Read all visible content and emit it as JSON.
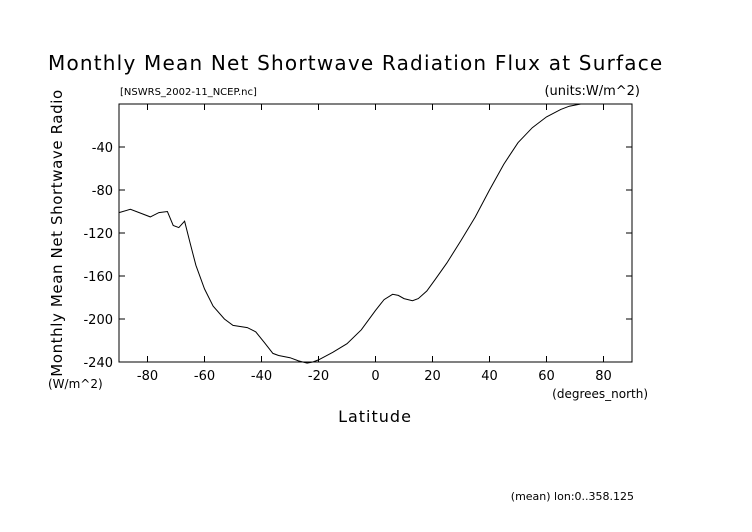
{
  "chart_data": {
    "type": "line",
    "title": "Monthly Mean Net Shortwave Radiation Flux at Surface",
    "file_label": "[NSWRS_2002-11_NCEP.nc]",
    "units_label": "(units:W/m^2)",
    "xlabel": "Latitude",
    "x_units": "(degrees_north)",
    "ylabel": "Monthly Mean Net Shortwave Radio",
    "y_units": "(W/m^2)",
    "footer": "(mean) lon:0..358.125",
    "xlim": [
      -90,
      90
    ],
    "ylim": [
      -240,
      0
    ],
    "x_ticks": [
      -80,
      -60,
      -40,
      -20,
      0,
      20,
      40,
      60,
      80
    ],
    "y_ticks": [
      -40,
      -80,
      -120,
      -160,
      -200,
      -240
    ],
    "grid": false,
    "x": [
      -90,
      -86,
      -82,
      -79,
      -76,
      -73,
      -71,
      -69,
      -67,
      -65,
      -63,
      -60,
      -57,
      -53,
      -50,
      -45,
      -42,
      -39,
      -36,
      -34,
      -30,
      -27,
      -24,
      -22,
      -20,
      -15,
      -10,
      -5,
      0,
      3,
      6,
      8,
      10,
      13,
      15,
      18,
      21,
      25,
      30,
      35,
      40,
      45,
      50,
      55,
      60,
      65,
      68,
      72,
      76,
      80
    ],
    "y": [
      -101,
      -98,
      -102,
      -105,
      -101,
      -100,
      -113,
      -115,
      -109,
      -130,
      -150,
      -172,
      -188,
      -200,
      -206,
      -208,
      -212,
      -222,
      -232,
      -234,
      -236,
      -239,
      -241,
      -240,
      -238,
      -231,
      -223,
      -210,
      -192,
      -182,
      -177,
      -178,
      -181,
      -183,
      -181,
      -174,
      -163,
      -148,
      -127,
      -105,
      -80,
      -56,
      -36,
      -22,
      -12,
      -5,
      -2,
      0,
      0,
      0
    ]
  }
}
